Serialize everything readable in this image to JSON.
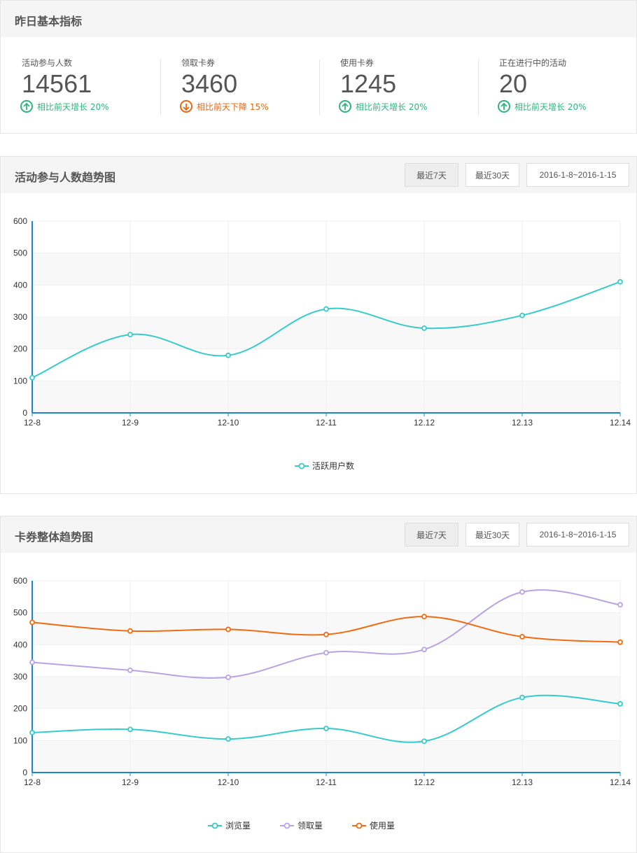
{
  "metrics_panel": {
    "title": "昨日基本指标",
    "items": [
      {
        "label": "活动参与人数",
        "value": "14561",
        "trend": "相比前天增长 20%",
        "direction": "up"
      },
      {
        "label": "领取卡券",
        "value": "3460",
        "trend": "相比前天下降 15%",
        "direction": "down"
      },
      {
        "label": "使用卡券",
        "value": "1245",
        "trend": "相比前天增长 20%",
        "direction": "up"
      },
      {
        "label": "正在进行中的活动",
        "value": "20",
        "trend": "相比前天增长 20%",
        "direction": "up"
      }
    ]
  },
  "participants_panel": {
    "title": "活动参与人数趋势图",
    "buttons": {
      "last7": "最近7天",
      "last30": "最近30天",
      "range": "2016-1-8~2016-1-15"
    }
  },
  "coupon_panel": {
    "title": "卡券整体趋势图",
    "buttons": {
      "last7": "最近7天",
      "last30": "最近30天",
      "range": "2016-1-8~2016-1-15"
    }
  },
  "colors": {
    "up": "#2cb67d",
    "down": "#e9670f",
    "axis": "#1a8ac6",
    "cyan": "#36cbcb",
    "purple": "#b9a3e3",
    "orange": "#f06b10"
  },
  "chart_data": [
    {
      "type": "line",
      "categories": [
        "12-8",
        "12-9",
        "12-10",
        "12-11",
        "12.12",
        "12.13",
        "12.14"
      ],
      "y_ticks": [
        0,
        100,
        200,
        300,
        400,
        500,
        600
      ],
      "ylim": [
        0,
        600
      ],
      "grid": true,
      "legend": "bottom-center",
      "series": [
        {
          "name": "活跃用户数",
          "color": "#36cbcb",
          "values": [
            110,
            245,
            180,
            325,
            265,
            305,
            410
          ]
        }
      ]
    },
    {
      "type": "line",
      "categories": [
        "12-8",
        "12-9",
        "12-10",
        "12-11",
        "12.12",
        "12.13",
        "12.14"
      ],
      "y_ticks": [
        0,
        100,
        200,
        300,
        400,
        500,
        600
      ],
      "ylim": [
        0,
        600
      ],
      "grid": true,
      "legend": "bottom-center",
      "series": [
        {
          "name": "浏览量",
          "color": "#36cbcb",
          "values": [
            125,
            135,
            105,
            138,
            98,
            235,
            215
          ]
        },
        {
          "name": "领取量",
          "color": "#b9a3e3",
          "values": [
            345,
            320,
            298,
            375,
            385,
            565,
            525
          ]
        },
        {
          "name": "使用量",
          "color": "#f06b10",
          "values": [
            470,
            443,
            448,
            432,
            488,
            425,
            408
          ]
        }
      ]
    }
  ]
}
